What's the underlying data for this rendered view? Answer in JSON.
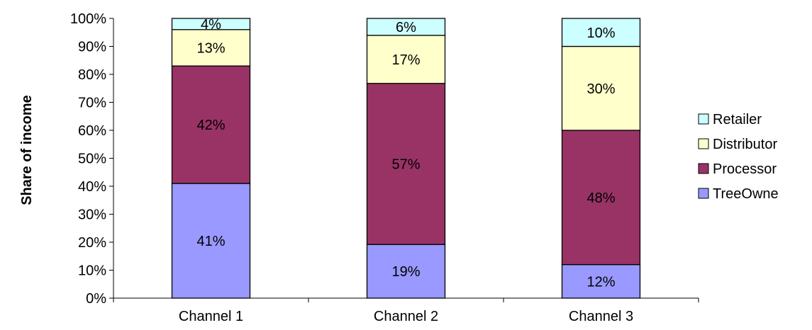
{
  "chart_data": {
    "type": "bar",
    "stacked": true,
    "categories": [
      "Channel 1",
      "Channel 2",
      "Channel 3"
    ],
    "series": [
      {
        "name": "TreeOwne",
        "color": "#9999ff",
        "values": [
          41,
          19,
          12
        ]
      },
      {
        "name": "Processor",
        "color": "#993366",
        "values": [
          42,
          57,
          48
        ]
      },
      {
        "name": "Distributor",
        "color": "#ffffcc",
        "values": [
          13,
          17,
          30
        ]
      },
      {
        "name": "Retailer",
        "color": "#ccffff",
        "values": [
          4,
          6,
          10
        ]
      }
    ],
    "data_labels": [
      [
        "41%",
        "19%",
        "12%"
      ],
      [
        "42%",
        "57%",
        "48%"
      ],
      [
        "13%",
        "17%",
        "30%"
      ],
      [
        "4%",
        "6%",
        "10%"
      ]
    ],
    "y_ticks": [
      "0%",
      "10%",
      "20%",
      "30%",
      "40%",
      "50%",
      "60%",
      "70%",
      "80%",
      "90%",
      "100%"
    ],
    "ylabel": "Share of income",
    "xlabel": "",
    "ylim": [
      0,
      100
    ],
    "grid": false,
    "legend_position": "right"
  }
}
